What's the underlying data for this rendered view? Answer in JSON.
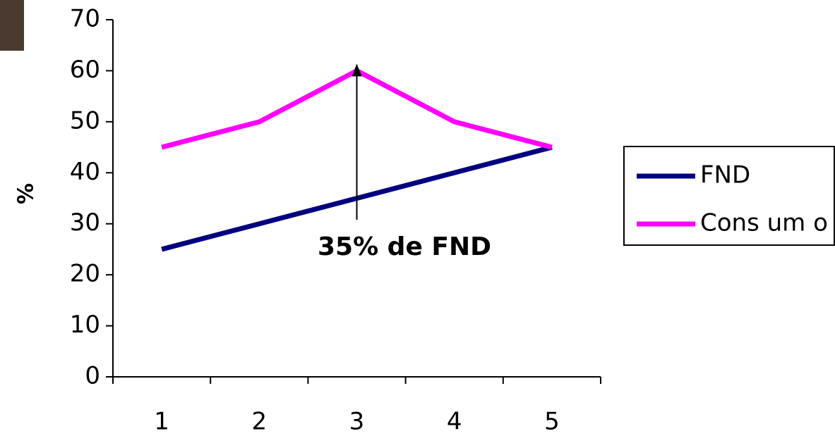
{
  "chart_data": {
    "type": "line",
    "y_label": "%",
    "annotation": "35% de FND",
    "categories": [
      "1",
      "2",
      "3",
      "4",
      "5"
    ],
    "series": [
      {
        "name": "FND",
        "color": "#000080",
        "values": [
          25,
          30,
          35,
          40,
          45
        ]
      },
      {
        "name": "Cons um o",
        "color": "#ff00ff",
        "values": [
          45,
          50,
          60,
          50,
          45
        ]
      }
    ],
    "ylim": [
      0,
      70
    ],
    "yticks": [
      0,
      10,
      20,
      30,
      40,
      50,
      60,
      70
    ],
    "legend": "right"
  }
}
